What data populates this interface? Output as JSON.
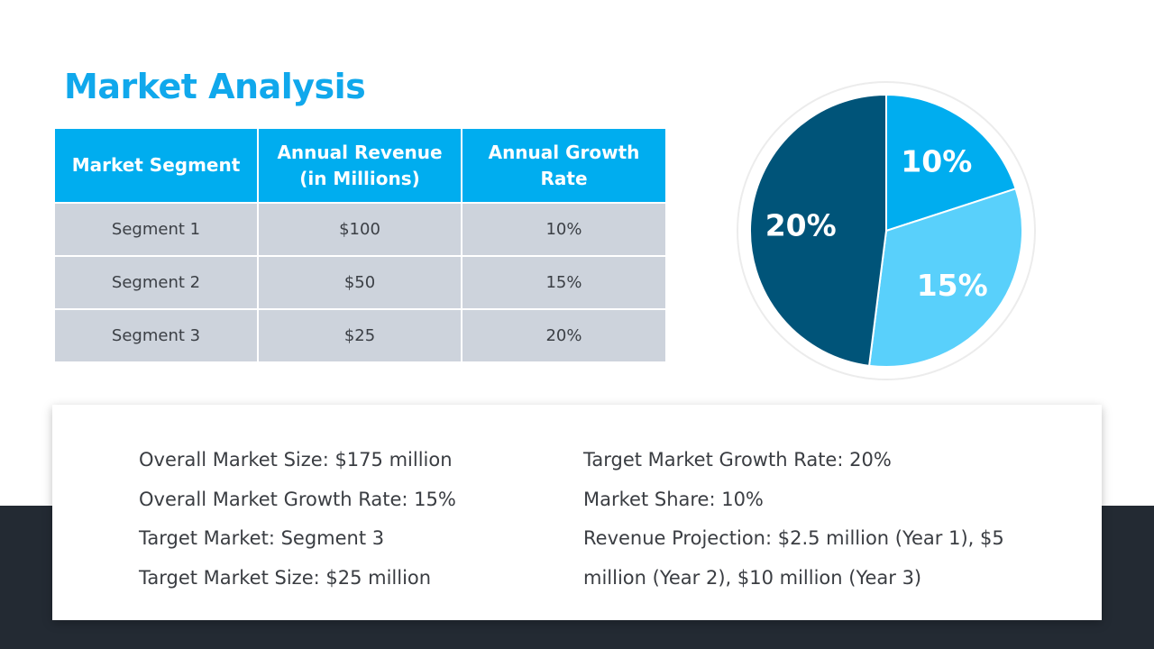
{
  "title": "Market Analysis",
  "table": {
    "headers": [
      "Market Segment",
      "Annual Revenue (in Millions)",
      "Annual Growth Rate"
    ],
    "rows": [
      [
        "Segment 1",
        "$100",
        "10%"
      ],
      [
        "Segment 2",
        "$50",
        "15%"
      ],
      [
        "Segment 3",
        "$25",
        "20%"
      ]
    ]
  },
  "chart_data": {
    "type": "pie",
    "title": "",
    "labels": [
      "10%",
      "15%",
      "20%"
    ],
    "values": [
      20,
      32,
      48
    ],
    "colors": [
      "#00adef",
      "#59d0fb",
      "#005479"
    ]
  },
  "summary": {
    "left": [
      "Overall Market Size: $175 million",
      "Overall Market Growth Rate: 15%",
      "Target Market: Segment 3",
      "Target Market Size: $25 million"
    ],
    "right": [
      "Target Market Growth Rate: 20%",
      "Market Share: 10%",
      "Revenue Projection: $2.5 million (Year 1), $5 million (Year 2), $10 million (Year 3)"
    ]
  }
}
